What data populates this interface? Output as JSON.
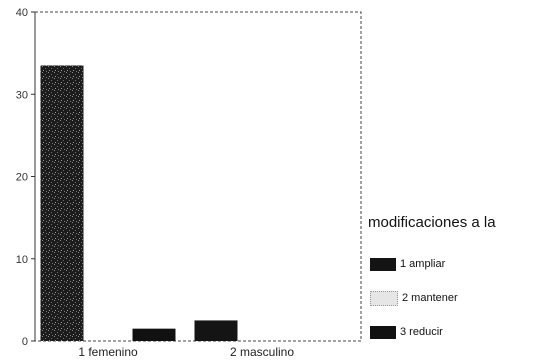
{
  "chart_data": {
    "type": "bar",
    "categories": [
      "1 femenino",
      "2 masculino"
    ],
    "series": [
      {
        "name": "1 ampliar",
        "values": [
          33.5,
          2.5
        ],
        "color": "#141414"
      },
      {
        "name": "2 mantener",
        "values": [
          0,
          0
        ],
        "color": "#e6e6e6"
      },
      {
        "name": "3 reducir",
        "values": [
          1.5,
          0
        ],
        "color": "#111111"
      }
    ],
    "ylim": [
      0,
      40
    ],
    "yticks": [
      "0",
      "10",
      "20",
      "30",
      "40"
    ],
    "grid": false,
    "legend_position": "right",
    "legend_title": "modificaciones a la"
  }
}
